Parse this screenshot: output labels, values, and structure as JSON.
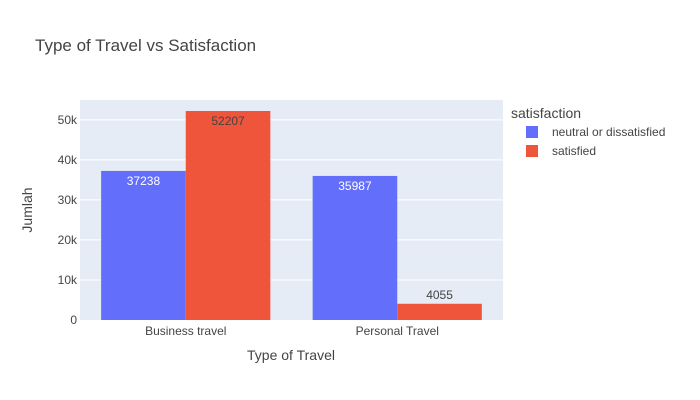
{
  "chart_data": {
    "type": "bar",
    "title": "Type of Travel vs Satisfaction",
    "xlabel": "Type of Travel",
    "ylabel": "Jumlah",
    "categories": [
      "Business travel",
      "Personal Travel"
    ],
    "series": [
      {
        "name": "neutral or dissatisfied",
        "color": "#636efa",
        "values": [
          37238,
          35987
        ]
      },
      {
        "name": "satisfied",
        "color": "#ef553b",
        "values": [
          52207,
          4055
        ]
      }
    ],
    "ylim": [
      0,
      54955
    ],
    "yticks": [
      0,
      10000,
      20000,
      30000,
      40000,
      50000
    ],
    "ytick_labels": [
      "0",
      "10k",
      "20k",
      "30k",
      "40k",
      "50k"
    ],
    "grid": true,
    "legend": {
      "title": "satisfaction",
      "placement": "right"
    }
  }
}
